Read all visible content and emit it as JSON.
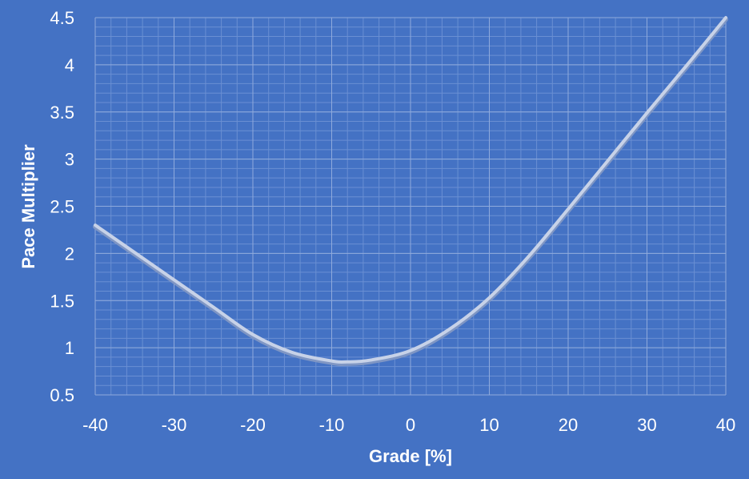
{
  "chart_data": {
    "type": "line",
    "title": "",
    "xlabel": "Grade [%]",
    "ylabel": "Pace Multiplier",
    "xlim": [
      -40,
      40
    ],
    "ylim": [
      0.5,
      4.5
    ],
    "x_ticks": [
      -40,
      -30,
      -20,
      -10,
      0,
      10,
      20,
      30,
      40
    ],
    "y_ticks": [
      0.5,
      1,
      1.5,
      2,
      2.5,
      3,
      3.5,
      4,
      4.5
    ],
    "x_tick_labels": [
      "-40",
      "-30",
      "-20",
      "-10",
      "0",
      "10",
      "20",
      "30",
      "40"
    ],
    "y_tick_labels": [
      "0.5",
      "1",
      "1.5",
      "2",
      "2.5",
      "3",
      "3.5",
      "4",
      "4.5"
    ],
    "grid": true,
    "minor_grid": true,
    "legend": "none",
    "series": [
      {
        "x": [
          -40,
          -35,
          -30,
          -25,
          -20,
          -15,
          -10,
          -8,
          -5,
          0,
          5,
          10,
          15,
          20,
          25,
          30,
          35,
          40
        ],
        "y": [
          2.3,
          2.01,
          1.72,
          1.43,
          1.14,
          0.95,
          0.86,
          0.85,
          0.87,
          0.97,
          1.2,
          1.53,
          1.97,
          2.47,
          2.98,
          3.49,
          3.99,
          4.5
        ]
      }
    ],
    "colors": {
      "background": "#4472C4",
      "line": "#C7D2E8",
      "line_shadow": "#7F96C4",
      "major_grid": "#8FAADC",
      "minor_grid": "#6A8FD3",
      "text": "#FFFFFF"
    }
  }
}
